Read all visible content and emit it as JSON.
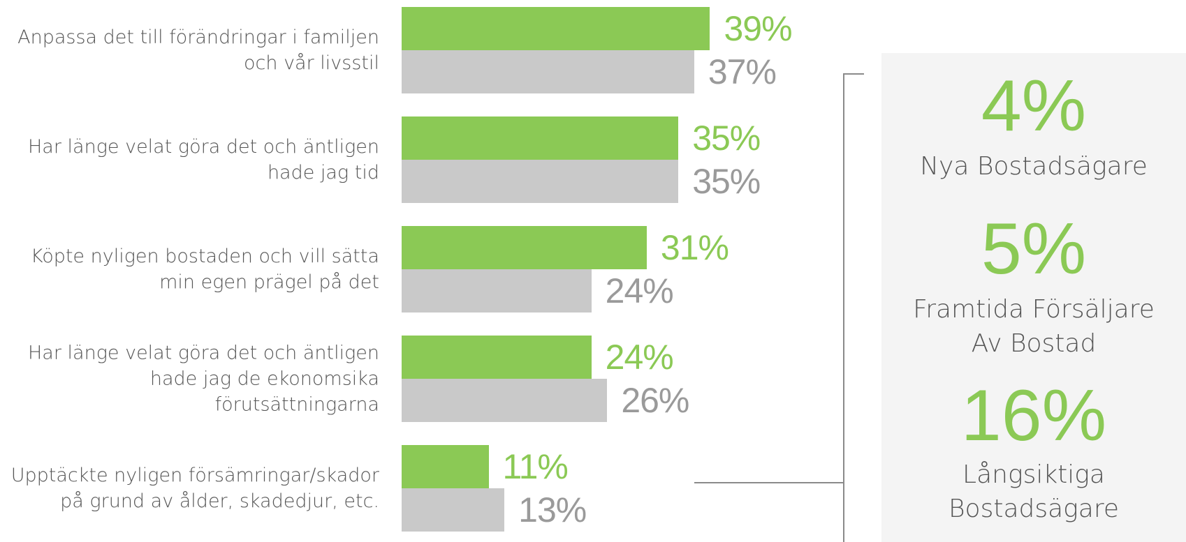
{
  "chart_data": {
    "type": "bar",
    "orientation": "horizontal",
    "categories": [
      "Anpassa det till förändringar i familjen\noch vår livsstil",
      "Har länge velat göra det och äntligen\nhade jag tid",
      "Köpte nyligen bostaden och vill sätta\nmin egen prägel på det",
      "Har länge velat göra det och äntligen\nhade jag de ekonomsika\nförutsättningarna",
      "Upptäckte nyligen försämringar/skador\npå grund av ålder, skadedjur, etc."
    ],
    "series": [
      {
        "color": "#8bc955",
        "label_color": "#8bc955",
        "values": [
          39,
          35,
          31,
          24,
          11
        ],
        "value_labels": [
          "39%",
          "35%",
          "31%",
          "24%",
          "11%"
        ]
      },
      {
        "color": "#c9c9c9",
        "label_color": "#9a9a9a",
        "values": [
          37,
          35,
          24,
          26,
          13
        ],
        "value_labels": [
          "37%",
          "35%",
          "24%",
          "26%",
          "13%"
        ]
      }
    ],
    "callouts": {
      "color": "#8bc955",
      "values": [
        4,
        5,
        16
      ],
      "value_labels": [
        "4%",
        "5%",
        "16%"
      ],
      "labels": [
        "Nya Bostadsägare",
        "Framtida Försäljare\nAv Bostad",
        "Långsiktiga\nBostadsägare"
      ]
    }
  }
}
